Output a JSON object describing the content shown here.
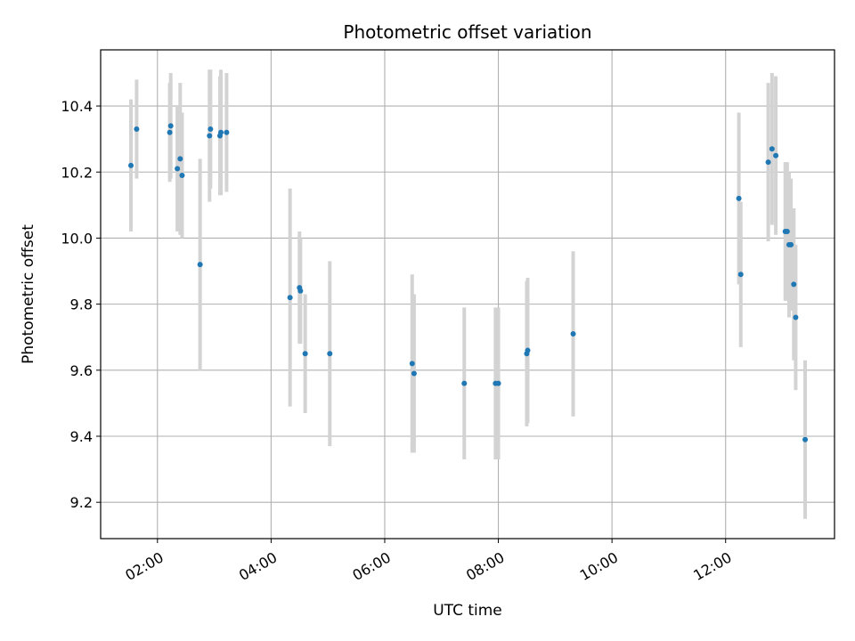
{
  "chart_data": {
    "type": "scatter",
    "title": "Photometric offset variation",
    "xlabel": "UTC time",
    "ylabel": "Photometric offset",
    "x_axis": "time (hours UTC)",
    "xlim": [
      "01:00",
      "13:55"
    ],
    "ylim": [
      9.09,
      10.57
    ],
    "xticks": [
      "02:00",
      "04:00",
      "06:00",
      "08:00",
      "10:00",
      "12:00"
    ],
    "yticks": [
      9.2,
      9.4,
      9.6,
      9.8,
      10.0,
      10.2,
      10.4
    ],
    "ytick_labels": [
      "9.2",
      "9.4",
      "9.6",
      "9.8",
      "10.0",
      "10.2",
      "10.4"
    ],
    "grid": true,
    "legend": "none",
    "point_color": "#1f77b4",
    "errorbar_color": "#d3d3d3",
    "points": [
      {
        "t": "01:32",
        "y": 10.22,
        "err": 0.2
      },
      {
        "t": "01:38",
        "y": 10.33,
        "err": 0.15
      },
      {
        "t": "02:13",
        "y": 10.32,
        "err": 0.15
      },
      {
        "t": "02:14",
        "y": 10.34,
        "err": 0.16
      },
      {
        "t": "02:21",
        "y": 10.21,
        "err": 0.19
      },
      {
        "t": "02:24",
        "y": 10.24,
        "err": 0.23
      },
      {
        "t": "02:26",
        "y": 10.19,
        "err": 0.19
      },
      {
        "t": "02:45",
        "y": 9.92,
        "err": 0.32
      },
      {
        "t": "02:55",
        "y": 10.31,
        "err": 0.2
      },
      {
        "t": "02:56",
        "y": 10.33,
        "err": 0.18
      },
      {
        "t": "03:06",
        "y": 10.31,
        "err": 0.18
      },
      {
        "t": "03:07",
        "y": 10.32,
        "err": 0.19
      },
      {
        "t": "03:13",
        "y": 10.32,
        "err": 0.18
      },
      {
        "t": "04:20",
        "y": 9.82,
        "err": 0.33
      },
      {
        "t": "04:30",
        "y": 9.85,
        "err": 0.17
      },
      {
        "t": "04:31",
        "y": 9.84,
        "err": 0.16
      },
      {
        "t": "04:36",
        "y": 9.65,
        "err": 0.18
      },
      {
        "t": "05:02",
        "y": 9.65,
        "err": 0.28
      },
      {
        "t": "06:29",
        "y": 9.62,
        "err": 0.27
      },
      {
        "t": "06:31",
        "y": 9.59,
        "err": 0.24
      },
      {
        "t": "07:24",
        "y": 9.56,
        "err": 0.23
      },
      {
        "t": "07:57",
        "y": 9.56,
        "err": 0.23
      },
      {
        "t": "08:00",
        "y": 9.56,
        "err": 0.23
      },
      {
        "t": "08:30",
        "y": 9.65,
        "err": 0.22
      },
      {
        "t": "08:31",
        "y": 9.66,
        "err": 0.22
      },
      {
        "t": "09:19",
        "y": 9.71,
        "err": 0.25
      },
      {
        "t": "12:14",
        "y": 10.12,
        "err": 0.26
      },
      {
        "t": "12:16",
        "y": 9.89,
        "err": 0.22
      },
      {
        "t": "12:45",
        "y": 10.23,
        "err": 0.24
      },
      {
        "t": "12:49",
        "y": 10.27,
        "err": 0.23
      },
      {
        "t": "12:53",
        "y": 10.25,
        "err": 0.24
      },
      {
        "t": "13:03",
        "y": 10.02,
        "err": 0.21
      },
      {
        "t": "13:05",
        "y": 10.02,
        "err": 0.21
      },
      {
        "t": "13:07",
        "y": 9.98,
        "err": 0.22
      },
      {
        "t": "13:09",
        "y": 9.98,
        "err": 0.2
      },
      {
        "t": "13:12",
        "y": 9.86,
        "err": 0.23
      },
      {
        "t": "13:14",
        "y": 9.76,
        "err": 0.22
      },
      {
        "t": "13:24",
        "y": 9.39,
        "err": 0.24
      }
    ]
  }
}
